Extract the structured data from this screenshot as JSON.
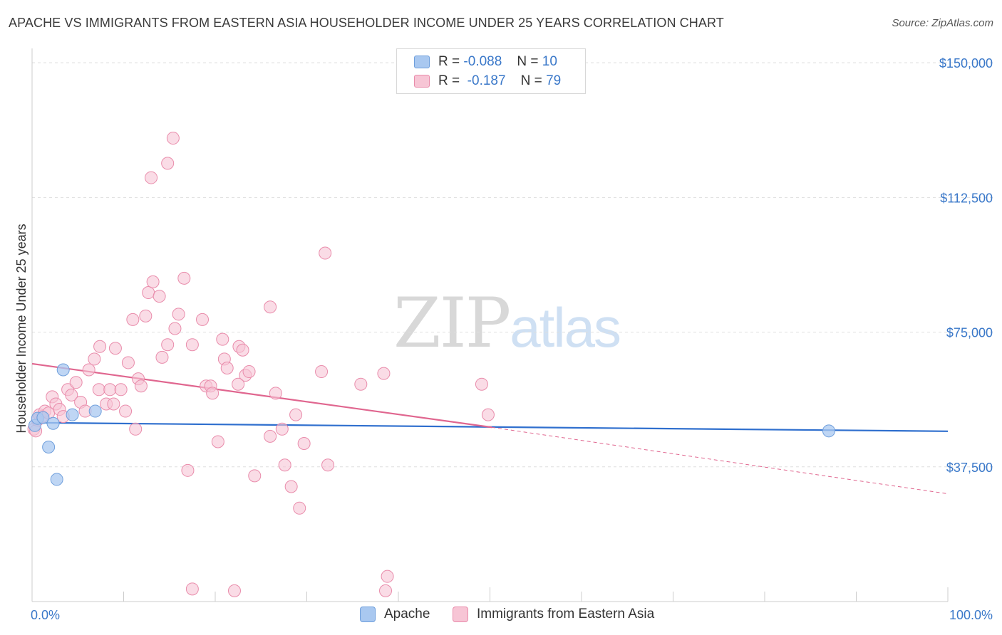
{
  "title": "APACHE VS IMMIGRANTS FROM EASTERN ASIA HOUSEHOLDER INCOME UNDER 25 YEARS CORRELATION CHART",
  "source": "Source: ZipAtlas.com",
  "watermark": {
    "zip": "ZIP",
    "atlas": "atlas"
  },
  "legend": {
    "rows": [
      {
        "r_label": "R =",
        "r_value": "-0.088",
        "n_label": "N =",
        "n_value": "10",
        "color": "#a9c8f0",
        "border": "#6f9fdc"
      },
      {
        "r_label": "R =",
        "r_value": "-0.187",
        "n_label": "N =",
        "n_value": "79",
        "color": "#f7c5d5",
        "border": "#e98cab"
      }
    ]
  },
  "bottom_legend": [
    {
      "label": "Apache",
      "color": "#a9c8f0",
      "border": "#6f9fdc"
    },
    {
      "label": "Immigrants from Eastern Asia",
      "color": "#f7c5d5",
      "border": "#e98cab"
    }
  ],
  "chart_data": {
    "type": "scatter",
    "title": "APACHE VS IMMIGRANTS FROM EASTERN ASIA HOUSEHOLDER INCOME UNDER 25 YEARS CORRELATION CHART",
    "xlabel": "",
    "ylabel": "Householder Income Under 25 years",
    "xlim": [
      0,
      100
    ],
    "ylim": [
      0,
      152000
    ],
    "x_tick_labels": [
      "0.0%",
      "100.0%"
    ],
    "y_ticks": [
      37500,
      75000,
      112500,
      150000
    ],
    "y_tick_labels": [
      "$37,500",
      "$75,000",
      "$112,500",
      "$150,000"
    ],
    "grid": true,
    "series": [
      {
        "name": "Apache",
        "color": "#a9c8f0",
        "stroke": "#6f9fdc",
        "points": [
          [
            0.3,
            49000
          ],
          [
            0.6,
            51000
          ],
          [
            1.2,
            51200
          ],
          [
            2.3,
            49600
          ],
          [
            1.8,
            43000
          ],
          [
            3.4,
            64500
          ],
          [
            4.4,
            52000
          ],
          [
            6.9,
            53000
          ],
          [
            2.7,
            34000
          ],
          [
            87.0,
            47500
          ]
        ],
        "trend": {
          "color": "#2f6fce",
          "x": [
            0,
            100
          ],
          "y": [
            49800,
            47400
          ]
        }
      },
      {
        "name": "Immigrants from Eastern Asia",
        "color": "#f7c5d5",
        "stroke": "#e98cab",
        "points": [
          [
            0.2,
            48000
          ],
          [
            0.4,
            47500
          ],
          [
            0.6,
            50500
          ],
          [
            0.8,
            52000
          ],
          [
            1.1,
            51500
          ],
          [
            1.4,
            53000
          ],
          [
            1.8,
            52500
          ],
          [
            2.2,
            57000
          ],
          [
            2.6,
            55000
          ],
          [
            3.0,
            53500
          ],
          [
            3.4,
            51500
          ],
          [
            3.9,
            59000
          ],
          [
            4.3,
            57500
          ],
          [
            4.8,
            61000
          ],
          [
            5.3,
            55500
          ],
          [
            5.8,
            53000
          ],
          [
            6.2,
            64500
          ],
          [
            6.8,
            67500
          ],
          [
            7.4,
            71000
          ],
          [
            7.3,
            59000
          ],
          [
            8.1,
            55000
          ],
          [
            8.5,
            59000
          ],
          [
            8.9,
            55000
          ],
          [
            9.1,
            70500
          ],
          [
            9.7,
            59000
          ],
          [
            10.2,
            53000
          ],
          [
            10.5,
            66500
          ],
          [
            11.0,
            78500
          ],
          [
            11.3,
            48000
          ],
          [
            11.6,
            62000
          ],
          [
            11.9,
            60000
          ],
          [
            12.4,
            79500
          ],
          [
            12.7,
            86000
          ],
          [
            13.2,
            89000
          ],
          [
            13.9,
            85000
          ],
          [
            14.2,
            68000
          ],
          [
            14.8,
            71500
          ],
          [
            15.6,
            76000
          ],
          [
            16.0,
            80000
          ],
          [
            16.6,
            90000
          ],
          [
            17.5,
            71500
          ],
          [
            18.6,
            78500
          ],
          [
            19.0,
            60000
          ],
          [
            19.5,
            60000
          ],
          [
            19.7,
            58000
          ],
          [
            20.3,
            44500
          ],
          [
            20.8,
            73000
          ],
          [
            21.0,
            67500
          ],
          [
            21.3,
            65000
          ],
          [
            22.6,
            71000
          ],
          [
            23.0,
            70000
          ],
          [
            23.3,
            63000
          ],
          [
            23.7,
            64000
          ],
          [
            26.0,
            46000
          ],
          [
            26.6,
            58000
          ],
          [
            26.0,
            82000
          ],
          [
            27.3,
            48000
          ],
          [
            27.6,
            38000
          ],
          [
            28.3,
            32000
          ],
          [
            28.8,
            52000
          ],
          [
            29.2,
            26000
          ],
          [
            29.7,
            44000
          ],
          [
            31.6,
            64000
          ],
          [
            32.3,
            38000
          ],
          [
            32.0,
            97000
          ],
          [
            35.9,
            60500
          ],
          [
            38.4,
            63500
          ],
          [
            38.8,
            7000
          ],
          [
            38.6,
            3000
          ],
          [
            49.1,
            60500
          ],
          [
            49.8,
            52000
          ],
          [
            17.0,
            36500
          ],
          [
            24.3,
            35000
          ],
          [
            22.5,
            60500
          ],
          [
            13.0,
            118000
          ],
          [
            14.8,
            122000
          ],
          [
            15.4,
            129000
          ],
          [
            17.5,
            3500
          ],
          [
            22.1,
            3000
          ]
        ],
        "trend": {
          "color": "#e0668f",
          "x": [
            0,
            50.2
          ],
          "y": [
            66200,
            48500
          ]
        },
        "trend_extension": {
          "x": [
            50.2,
            100
          ],
          "y": [
            48500,
            30000
          ]
        }
      }
    ]
  }
}
